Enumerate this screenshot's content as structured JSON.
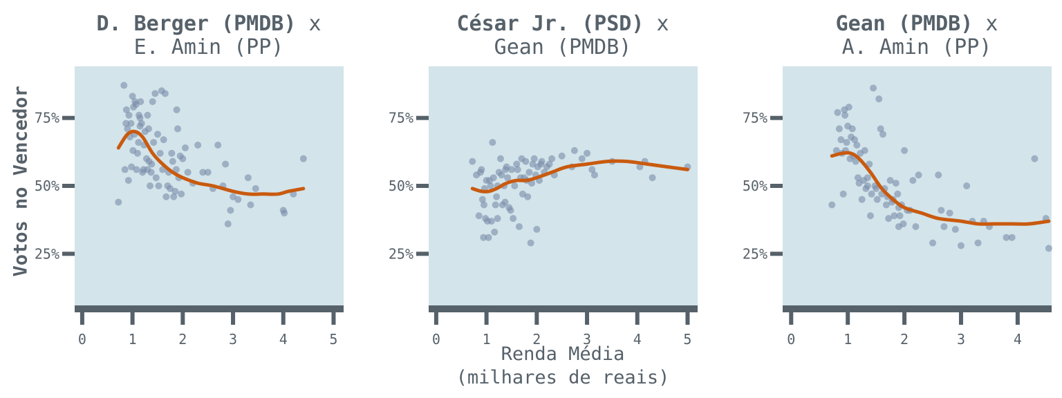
{
  "y_axis_label": "Votos no Vencedor",
  "x_axis_label_line1": "Renda Média",
  "x_axis_label_line2": "(milhares de reais)",
  "colors": {
    "panel_bg": "#d3e4ea",
    "point": "#7a8ca8",
    "smooth": "#c95a0f",
    "axis": "#56616a",
    "text": "#56616a"
  },
  "chart_data": [
    {
      "type": "scatter",
      "title_bold": "D. Berger (PMDB)",
      "title_rest": " x",
      "subtitle": "E. Amin (PP)",
      "xlabel": "",
      "ylabel": "Votos no Vencedor",
      "xlim": [
        -0.15,
        5.2
      ],
      "ylim": [
        0.06,
        0.94
      ],
      "xticks": [
        0,
        1,
        2,
        3,
        4,
        5
      ],
      "xtick_labels": [
        "0",
        "1",
        "2",
        "3",
        "4",
        "5"
      ],
      "yticks": [
        0.25,
        0.5,
        0.75
      ],
      "ytick_labels": [
        "25%",
        "50%",
        "75%"
      ],
      "points": [
        [
          0.72,
          0.44
        ],
        [
          0.83,
          0.87
        ],
        [
          0.85,
          0.56
        ],
        [
          0.87,
          0.73
        ],
        [
          0.88,
          0.78
        ],
        [
          0.9,
          0.71
        ],
        [
          0.92,
          0.52
        ],
        [
          0.93,
          0.76
        ],
        [
          0.95,
          0.68
        ],
        [
          0.97,
          0.73
        ],
        [
          0.98,
          0.57
        ],
        [
          1.0,
          0.83
        ],
        [
          1.01,
          0.63
        ],
        [
          1.02,
          0.79
        ],
        [
          1.04,
          0.69
        ],
        [
          1.05,
          0.81
        ],
        [
          1.07,
          0.8
        ],
        [
          1.08,
          0.56
        ],
        [
          1.1,
          0.62
        ],
        [
          1.12,
          0.66
        ],
        [
          1.13,
          0.76
        ],
        [
          1.15,
          0.72
        ],
        [
          1.16,
          0.81
        ],
        [
          1.18,
          0.73
        ],
        [
          1.2,
          0.55
        ],
        [
          1.22,
          0.56
        ],
        [
          1.23,
          0.65
        ],
        [
          1.25,
          0.7
        ],
        [
          1.28,
          0.6
        ],
        [
          1.3,
          0.56
        ],
        [
          1.32,
          0.71
        ],
        [
          1.33,
          0.59
        ],
        [
          1.35,
          0.5
        ],
        [
          1.37,
          0.55
        ],
        [
          1.38,
          0.58
        ],
        [
          1.4,
          0.81
        ],
        [
          1.42,
          0.66
        ],
        [
          1.45,
          0.84
        ],
        [
          1.47,
          0.53
        ],
        [
          1.5,
          0.69
        ],
        [
          1.52,
          0.5
        ],
        [
          1.55,
          0.62
        ],
        [
          1.58,
          0.85
        ],
        [
          1.6,
          0.56
        ],
        [
          1.62,
          0.67
        ],
        [
          1.65,
          0.84
        ],
        [
          1.67,
          0.46
        ],
        [
          1.7,
          0.5
        ],
        [
          1.72,
          0.55
        ],
        [
          1.75,
          0.49
        ],
        [
          1.78,
          0.62
        ],
        [
          1.8,
          0.59
        ],
        [
          1.82,
          0.46
        ],
        [
          1.85,
          0.48
        ],
        [
          1.87,
          0.56
        ],
        [
          1.9,
          0.71
        ],
        [
          1.92,
          0.53
        ],
        [
          1.95,
          0.61
        ],
        [
          1.97,
          0.47
        ],
        [
          2.0,
          0.6
        ],
        [
          2.05,
          0.64
        ],
        [
          2.1,
          0.55
        ],
        [
          2.2,
          0.51
        ],
        [
          2.3,
          0.65
        ],
        [
          2.4,
          0.55
        ],
        [
          2.5,
          0.55
        ],
        [
          2.6,
          0.49
        ],
        [
          2.7,
          0.65
        ],
        [
          2.8,
          0.5
        ],
        [
          2.85,
          0.58
        ],
        [
          2.9,
          0.36
        ],
        [
          2.95,
          0.41
        ],
        [
          3.0,
          0.46
        ],
        [
          3.1,
          0.45
        ],
        [
          3.3,
          0.53
        ],
        [
          3.35,
          0.43
        ],
        [
          3.45,
          0.49
        ],
        [
          4.0,
          0.41
        ],
        [
          4.02,
          0.4
        ],
        [
          4.2,
          0.47
        ],
        [
          4.4,
          0.6
        ],
        [
          1.88,
          0.78
        ],
        [
          1.3,
          0.76
        ],
        [
          1.15,
          0.75
        ]
      ],
      "smooth": [
        [
          0.72,
          0.64
        ],
        [
          0.9,
          0.69
        ],
        [
          1.05,
          0.7
        ],
        [
          1.2,
          0.68
        ],
        [
          1.4,
          0.62
        ],
        [
          1.6,
          0.58
        ],
        [
          1.8,
          0.55
        ],
        [
          2.0,
          0.53
        ],
        [
          2.3,
          0.51
        ],
        [
          2.6,
          0.5
        ],
        [
          3.0,
          0.48
        ],
        [
          3.3,
          0.47
        ],
        [
          3.6,
          0.47
        ],
        [
          3.9,
          0.47
        ],
        [
          4.1,
          0.48
        ],
        [
          4.4,
          0.49
        ]
      ]
    },
    {
      "type": "scatter",
      "title_bold": "César Jr. (PSD)",
      "title_rest": " x",
      "subtitle": "Gean (PMDB)",
      "xlabel": "Renda Média (milhares de reais)",
      "ylabel": "",
      "xlim": [
        -0.15,
        5.2
      ],
      "ylim": [
        0.06,
        0.94
      ],
      "xticks": [
        0,
        1,
        2,
        3,
        4,
        5
      ],
      "xtick_labels": [
        "0",
        "1",
        "2",
        "3",
        "4",
        "5"
      ],
      "yticks": [
        0.25,
        0.5,
        0.75
      ],
      "ytick_labels": [
        "25%",
        "50%",
        "75%"
      ],
      "points": [
        [
          0.72,
          0.59
        ],
        [
          0.8,
          0.54
        ],
        [
          0.85,
          0.39
        ],
        [
          0.88,
          0.55
        ],
        [
          0.9,
          0.56
        ],
        [
          0.92,
          0.45
        ],
        [
          0.94,
          0.31
        ],
        [
          0.96,
          0.49
        ],
        [
          0.98,
          0.38
        ],
        [
          1.0,
          0.52
        ],
        [
          1.02,
          0.37
        ],
        [
          1.04,
          0.31
        ],
        [
          1.06,
          0.52
        ],
        [
          1.08,
          0.5
        ],
        [
          1.1,
          0.37
        ],
        [
          1.12,
          0.66
        ],
        [
          1.14,
          0.53
        ],
        [
          1.16,
          0.33
        ],
        [
          1.18,
          0.43
        ],
        [
          1.2,
          0.46
        ],
        [
          1.22,
          0.5
        ],
        [
          1.25,
          0.55
        ],
        [
          1.28,
          0.6
        ],
        [
          1.3,
          0.54
        ],
        [
          1.32,
          0.43
        ],
        [
          1.35,
          0.5
        ],
        [
          1.38,
          0.56
        ],
        [
          1.4,
          0.57
        ],
        [
          1.42,
          0.53
        ],
        [
          1.45,
          0.42
        ],
        [
          1.48,
          0.41
        ],
        [
          1.5,
          0.56
        ],
        [
          1.53,
          0.38
        ],
        [
          1.56,
          0.5
        ],
        [
          1.6,
          0.58
        ],
        [
          1.62,
          0.56
        ],
        [
          1.65,
          0.35
        ],
        [
          1.68,
          0.53
        ],
        [
          1.7,
          0.6
        ],
        [
          1.72,
          0.47
        ],
        [
          1.75,
          0.53
        ],
        [
          1.78,
          0.59
        ],
        [
          1.8,
          0.52
        ],
        [
          1.82,
          0.46
        ],
        [
          1.85,
          0.55
        ],
        [
          1.88,
          0.29
        ],
        [
          1.9,
          0.51
        ],
        [
          1.92,
          0.58
        ],
        [
          1.95,
          0.6
        ],
        [
          1.98,
          0.54
        ],
        [
          2.0,
          0.34
        ],
        [
          2.02,
          0.57
        ],
        [
          2.05,
          0.52
        ],
        [
          2.08,
          0.58
        ],
        [
          2.1,
          0.59
        ],
        [
          2.15,
          0.55
        ],
        [
          2.2,
          0.57
        ],
        [
          2.25,
          0.58
        ],
        [
          2.3,
          0.6
        ],
        [
          2.35,
          0.54
        ],
        [
          2.5,
          0.61
        ],
        [
          2.7,
          0.57
        ],
        [
          2.75,
          0.63
        ],
        [
          2.9,
          0.6
        ],
        [
          3.0,
          0.62
        ],
        [
          3.1,
          0.56
        ],
        [
          3.15,
          0.54
        ],
        [
          3.5,
          0.59
        ],
        [
          4.05,
          0.57
        ],
        [
          4.15,
          0.59
        ],
        [
          4.3,
          0.53
        ],
        [
          5.0,
          0.57
        ],
        [
          0.95,
          0.43
        ],
        [
          1.37,
          0.44
        ],
        [
          1.22,
          0.38
        ]
      ],
      "smooth": [
        [
          0.72,
          0.49
        ],
        [
          0.9,
          0.48
        ],
        [
          1.05,
          0.48
        ],
        [
          1.2,
          0.49
        ],
        [
          1.4,
          0.51
        ],
        [
          1.6,
          0.52
        ],
        [
          1.8,
          0.52
        ],
        [
          2.0,
          0.53
        ],
        [
          2.3,
          0.55
        ],
        [
          2.6,
          0.57
        ],
        [
          3.0,
          0.58
        ],
        [
          3.4,
          0.59
        ],
        [
          3.8,
          0.59
        ],
        [
          4.2,
          0.58
        ],
        [
          4.6,
          0.57
        ],
        [
          5.0,
          0.56
        ]
      ]
    },
    {
      "type": "scatter",
      "title_bold": "Gean (PMDB)",
      "title_rest": " x",
      "subtitle": "A. Amin (PP)",
      "xlabel": "",
      "ylabel": "",
      "xlim": [
        -0.15,
        4.6
      ],
      "ylim": [
        0.06,
        0.94
      ],
      "xticks": [
        0,
        1,
        2,
        3,
        4
      ],
      "xtick_labels": [
        "0",
        "1",
        "2",
        "3",
        "4"
      ],
      "yticks": [
        0.25,
        0.5,
        0.75
      ],
      "ytick_labels": [
        "25%",
        "50%",
        "75%"
      ],
      "points": [
        [
          0.72,
          0.43
        ],
        [
          0.8,
          0.63
        ],
        [
          0.82,
          0.77
        ],
        [
          0.85,
          0.71
        ],
        [
          0.88,
          0.67
        ],
        [
          0.9,
          0.62
        ],
        [
          0.92,
          0.47
        ],
        [
          0.94,
          0.78
        ],
        [
          0.96,
          0.63
        ],
        [
          0.98,
          0.66
        ],
        [
          1.0,
          0.72
        ],
        [
          1.02,
          0.79
        ],
        [
          1.04,
          0.6
        ],
        [
          1.06,
          0.68
        ],
        [
          1.08,
          0.71
        ],
        [
          1.1,
          0.61
        ],
        [
          1.12,
          0.67
        ],
        [
          1.14,
          0.59
        ],
        [
          1.16,
          0.65
        ],
        [
          1.18,
          0.53
        ],
        [
          1.2,
          0.51
        ],
        [
          1.22,
          0.62
        ],
        [
          1.25,
          0.45
        ],
        [
          1.28,
          0.52
        ],
        [
          1.3,
          0.63
        ],
        [
          1.32,
          0.49
        ],
        [
          1.35,
          0.5
        ],
        [
          1.38,
          0.58
        ],
        [
          1.4,
          0.39
        ],
        [
          1.42,
          0.47
        ],
        [
          1.45,
          0.86
        ],
        [
          1.48,
          0.5
        ],
        [
          1.5,
          0.49
        ],
        [
          1.52,
          0.45
        ],
        [
          1.55,
          0.82
        ],
        [
          1.58,
          0.71
        ],
        [
          1.6,
          0.47
        ],
        [
          1.62,
          0.69
        ],
        [
          1.65,
          0.49
        ],
        [
          1.68,
          0.43
        ],
        [
          1.7,
          0.46
        ],
        [
          1.72,
          0.38
        ],
        [
          1.75,
          0.52
        ],
        [
          1.78,
          0.44
        ],
        [
          1.8,
          0.45
        ],
        [
          1.82,
          0.39
        ],
        [
          1.85,
          0.51
        ],
        [
          1.88,
          0.47
        ],
        [
          1.9,
          0.42
        ],
        [
          1.92,
          0.39
        ],
        [
          1.95,
          0.43
        ],
        [
          1.98,
          0.36
        ],
        [
          2.0,
          0.63
        ],
        [
          2.05,
          0.41
        ],
        [
          2.1,
          0.41
        ],
        [
          2.15,
          0.52
        ],
        [
          2.2,
          0.35
        ],
        [
          2.25,
          0.54
        ],
        [
          2.5,
          0.29
        ],
        [
          2.6,
          0.54
        ],
        [
          2.65,
          0.41
        ],
        [
          2.7,
          0.35
        ],
        [
          2.8,
          0.4
        ],
        [
          2.9,
          0.34
        ],
        [
          3.0,
          0.28
        ],
        [
          3.1,
          0.5
        ],
        [
          3.2,
          0.37
        ],
        [
          3.3,
          0.29
        ],
        [
          3.4,
          0.37
        ],
        [
          3.5,
          0.35
        ],
        [
          3.8,
          0.31
        ],
        [
          3.9,
          0.31
        ],
        [
          4.3,
          0.6
        ],
        [
          4.5,
          0.38
        ],
        [
          4.55,
          0.27
        ],
        [
          0.95,
          0.76
        ],
        [
          1.35,
          0.53
        ],
        [
          1.9,
          0.35
        ]
      ],
      "smooth": [
        [
          0.72,
          0.61
        ],
        [
          0.9,
          0.62
        ],
        [
          1.05,
          0.62
        ],
        [
          1.2,
          0.6
        ],
        [
          1.4,
          0.55
        ],
        [
          1.6,
          0.49
        ],
        [
          1.8,
          0.45
        ],
        [
          2.0,
          0.42
        ],
        [
          2.3,
          0.4
        ],
        [
          2.6,
          0.38
        ],
        [
          3.0,
          0.37
        ],
        [
          3.3,
          0.36
        ],
        [
          3.6,
          0.36
        ],
        [
          3.9,
          0.36
        ],
        [
          4.2,
          0.36
        ],
        [
          4.55,
          0.37
        ]
      ]
    }
  ]
}
